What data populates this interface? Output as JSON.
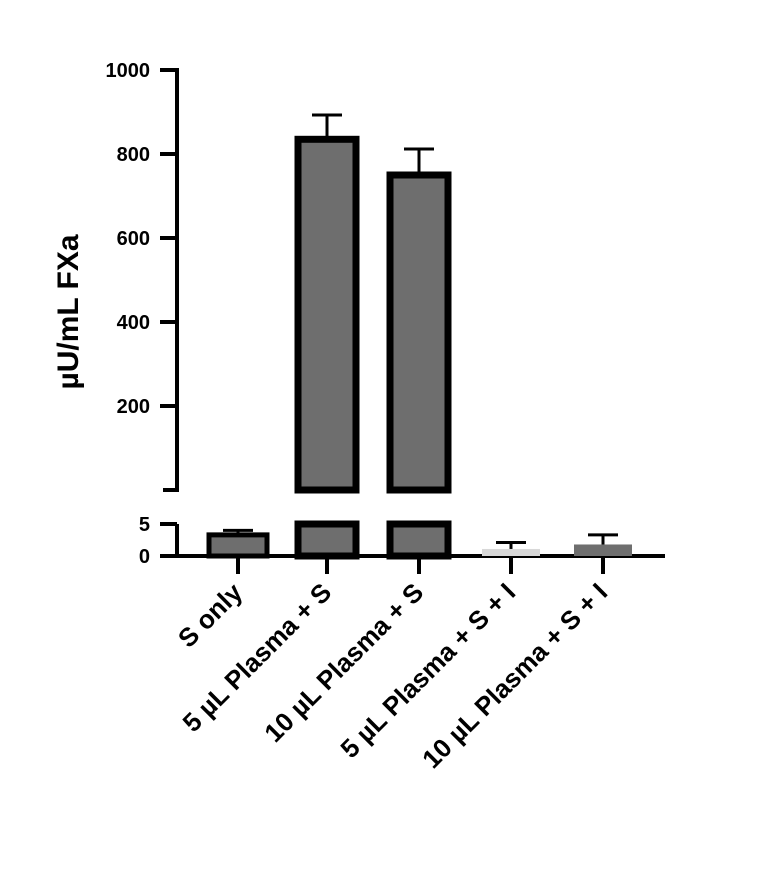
{
  "chart_data": {
    "type": "bar",
    "title": "",
    "xlabel": "",
    "ylabel": "µU/mL FXa",
    "y_axis_break": {
      "lower_segment": [
        0,
        5
      ],
      "upper_segment": [
        0,
        1000
      ]
    },
    "lower_ticks": [
      "0",
      "5"
    ],
    "upper_ticks": [
      "200",
      "400",
      "600",
      "800",
      "1000"
    ],
    "categories": [
      "S only",
      "5 µL Plasma + S",
      "10 µL Plasma + S",
      "5 µL Plasma + S + I",
      "10 µL Plasma + S + I"
    ],
    "values": [
      3.3,
      835,
      750,
      1.1,
      1.8
    ],
    "errors": [
      0.7,
      58,
      62,
      1.0,
      1.5
    ],
    "bar_colors": [
      "#6e6e6e",
      "#6e6e6e",
      "#6e6e6e",
      "#d8d8d8",
      "#6e6e6e"
    ],
    "grid": false,
    "legend": "none"
  }
}
